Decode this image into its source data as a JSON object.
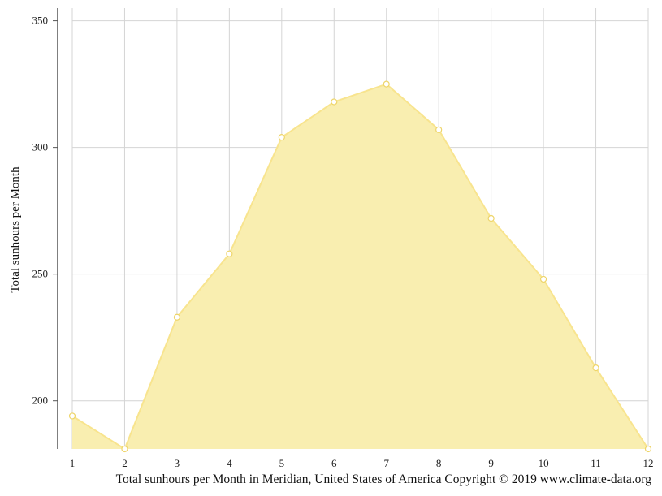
{
  "chart_data": {
    "type": "area",
    "x": [
      1,
      2,
      3,
      4,
      5,
      6,
      7,
      8,
      9,
      10,
      11,
      12
    ],
    "values": [
      194,
      181,
      233,
      258,
      304,
      318,
      325,
      307,
      272,
      248,
      213,
      181
    ],
    "ylabel": "Total sunhours per Month",
    "xlabel": "",
    "ylim": [
      181,
      355
    ],
    "xlim": [
      1,
      12
    ],
    "yticks": [
      200,
      250,
      300,
      350
    ],
    "xticks": [
      1,
      2,
      3,
      4,
      5,
      6,
      7,
      8,
      9,
      10,
      11,
      12
    ],
    "grid": true,
    "legend": "none"
  },
  "caption": "Total sunhours per Month in Meridian, United States of America Copyright © 2019 www.climate-data.org",
  "colors": {
    "fill": "#f9eeb0",
    "line": "#f8e48e",
    "marker_stroke": "#eed56a",
    "grid": "#d4d4d4",
    "axis": "#555555"
  }
}
